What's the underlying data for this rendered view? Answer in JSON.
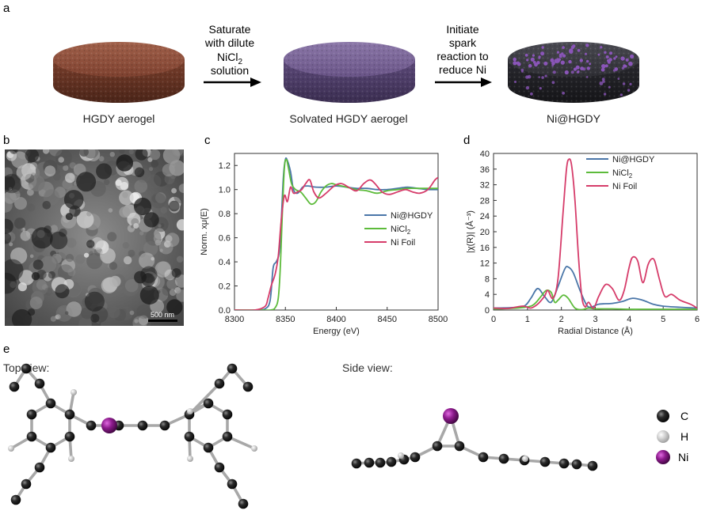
{
  "panel_labels": {
    "a": "a",
    "b": "b",
    "c": "c",
    "d": "d",
    "e": "e"
  },
  "panel_a": {
    "stage1": "HGDY aerogel",
    "stage2": "Solvated HGDY aerogel",
    "stage3": "Ni@HGDY",
    "arrow1_lines": [
      "Saturate",
      "with dilute",
      "NiCl",
      "solution"
    ],
    "arrow1_sub": "2",
    "arrow2_lines": [
      "Initiate",
      "spark",
      "reaction to",
      "reduce Ni"
    ],
    "colors": {
      "hgdy": "#8b4a36",
      "solvated": "#6f5a8e",
      "ni_hgdy": "#3a3a42",
      "ni_dot": "#8a55b8"
    }
  },
  "panel_b": {
    "scale_bar": "500 nm"
  },
  "panel_e": {
    "top_view": "Top view:",
    "side_view": "Side view:",
    "legend": [
      {
        "label": "C",
        "color": "#1c1c1c"
      },
      {
        "label": "H",
        "color": "#d8d8d8"
      },
      {
        "label": "Ni",
        "color": "#8e1c8e"
      }
    ]
  },
  "chart_data": [
    {
      "type": "line",
      "panel": "c",
      "xlabel": "Energy (eV)",
      "ylabel": "Norm. xμ(E)",
      "xlim": [
        8300,
        8500
      ],
      "ylim": [
        0,
        1.3
      ],
      "xticks": [
        8300,
        8350,
        8400,
        8450,
        8500
      ],
      "yticks": [
        "0.0",
        "0.2",
        "0.4",
        "0.6",
        "0.8",
        "1.0",
        "1.2"
      ],
      "legend": "right",
      "series": [
        {
          "name": "Ni@HGDY",
          "color": "#4a76a8",
          "x": [
            8300,
            8320,
            8330,
            8335,
            8338,
            8341,
            8344,
            8346,
            8348,
            8350,
            8352,
            8355,
            8358,
            8362,
            8367,
            8372,
            8380,
            8390,
            8400,
            8410,
            8420,
            8430,
            8440,
            8450,
            8460,
            8470,
            8480,
            8490,
            8500
          ],
          "y": [
            0.0,
            0.0,
            0.01,
            0.08,
            0.35,
            0.4,
            0.48,
            0.75,
            1.1,
            1.25,
            1.24,
            1.15,
            1.0,
            0.97,
            1.02,
            1.03,
            1.02,
            1.02,
            1.03,
            1.02,
            1.01,
            1.01,
            1.0,
            1.0,
            1.01,
            1.02,
            1.01,
            1.0,
            1.0
          ]
        },
        {
          "name": "NiCl2",
          "color": "#5dbb3b",
          "x": [
            8300,
            8320,
            8335,
            8340,
            8343,
            8345,
            8347,
            8349,
            8351,
            8353,
            8356,
            8360,
            8365,
            8370,
            8375,
            8380,
            8385,
            8390,
            8395,
            8400,
            8410,
            8420,
            8430,
            8440,
            8450,
            8460,
            8470,
            8480,
            8490,
            8500
          ],
          "y": [
            0.0,
            0.0,
            0.0,
            0.02,
            0.1,
            0.35,
            0.8,
            1.18,
            1.25,
            1.18,
            1.05,
            1.0,
            0.98,
            0.93,
            0.88,
            0.9,
            0.98,
            1.03,
            1.05,
            1.04,
            1.02,
            1.0,
            0.99,
            0.97,
            0.99,
            1.0,
            1.01,
            1.01,
            1.01,
            1.01
          ]
        },
        {
          "name": "Ni Foil",
          "color": "#d63c6a",
          "x": [
            8300,
            8320,
            8330,
            8333,
            8336,
            8340,
            8343,
            8346,
            8349,
            8352,
            8355,
            8358,
            8362,
            8366,
            8370,
            8374,
            8378,
            8383,
            8390,
            8398,
            8405,
            8412,
            8420,
            8427,
            8433,
            8438,
            8445,
            8452,
            8460,
            8468,
            8475,
            8482,
            8490,
            8497,
            8500
          ],
          "y": [
            0.0,
            0.0,
            0.03,
            0.1,
            0.2,
            0.3,
            0.45,
            0.75,
            0.95,
            0.9,
            1.02,
            0.97,
            0.98,
            1.0,
            1.05,
            1.08,
            0.98,
            0.93,
            0.97,
            1.03,
            1.05,
            1.02,
            0.99,
            1.05,
            1.08,
            1.05,
            0.98,
            0.96,
            0.98,
            1.0,
            0.98,
            0.97,
            1.0,
            1.08,
            1.1
          ]
        }
      ]
    },
    {
      "type": "line",
      "panel": "d",
      "xlabel": "Radial Distance (Å)",
      "ylabel": "|χ(R)| (Å⁻³)",
      "xlim": [
        0,
        6
      ],
      "ylim": [
        0,
        40
      ],
      "xticks": [
        0,
        1,
        2,
        3,
        4,
        5,
        6
      ],
      "yticks": [
        0,
        4,
        8,
        12,
        16,
        20,
        24,
        28,
        32,
        36,
        40
      ],
      "legend": "top-right",
      "series": [
        {
          "name": "Ni@HGDY",
          "color": "#4a76a8",
          "x": [
            0,
            0.5,
            0.9,
            1.1,
            1.3,
            1.5,
            1.7,
            1.9,
            2.1,
            2.2,
            2.35,
            2.55,
            2.75,
            2.9,
            3.1,
            3.5,
            3.8,
            4.1,
            4.4,
            4.7,
            5.0,
            5.5,
            6.0
          ],
          "y": [
            0.5,
            0.6,
            1.0,
            3.0,
            5.5,
            3.5,
            2.0,
            6.0,
            10.5,
            11.0,
            9.5,
            5.0,
            1.2,
            0.8,
            1.5,
            1.7,
            2.2,
            3.0,
            2.5,
            1.5,
            1.0,
            0.7,
            0.5
          ]
        },
        {
          "name": "NiCl2",
          "color": "#5dbb3b",
          "x": [
            0,
            0.5,
            1.0,
            1.2,
            1.4,
            1.55,
            1.7,
            1.8,
            1.9,
            2.05,
            2.2,
            2.4,
            2.6,
            2.8,
            3.0,
            3.5,
            4.0,
            4.5,
            5.0,
            6.0
          ],
          "y": [
            0.3,
            0.4,
            0.8,
            1.5,
            3.5,
            5.0,
            4.5,
            2.0,
            2.5,
            3.8,
            3.0,
            0.5,
            0.1,
            0.5,
            0.3,
            0.3,
            0.2,
            0.2,
            0.2,
            0.2
          ]
        },
        {
          "name": "Ni Foil",
          "color": "#d63c6a",
          "x": [
            0,
            0.4,
            0.7,
            0.9,
            1.1,
            1.3,
            1.5,
            1.6,
            1.75,
            1.9,
            2.05,
            2.15,
            2.22,
            2.3,
            2.4,
            2.5,
            2.6,
            2.7,
            2.8,
            2.95,
            3.1,
            3.3,
            3.5,
            3.7,
            3.85,
            4.0,
            4.1,
            4.25,
            4.4,
            4.55,
            4.65,
            4.75,
            4.9,
            5.05,
            5.25,
            5.5,
            5.8,
            6.0
          ],
          "y": [
            0.5,
            0.4,
            0.8,
            1.0,
            0.5,
            1.5,
            3.5,
            5.0,
            3.0,
            8.0,
            25.0,
            36.0,
            38.5,
            37.0,
            28.0,
            14.0,
            3.5,
            0.8,
            2.0,
            0.5,
            3.5,
            6.5,
            5.5,
            2.5,
            5.0,
            11.0,
            13.5,
            12.5,
            7.0,
            11.5,
            13.0,
            12.5,
            7.5,
            3.5,
            4.0,
            2.5,
            1.5,
            0.5
          ]
        }
      ]
    }
  ]
}
